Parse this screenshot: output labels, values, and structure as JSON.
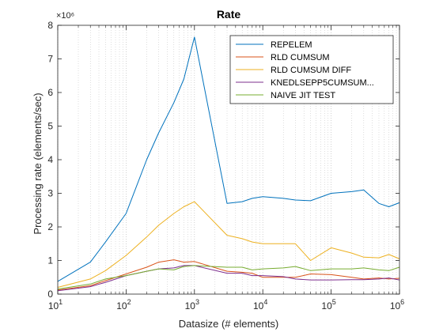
{
  "chart_data": {
    "type": "line",
    "title": "Rate",
    "xlabel": "Datasize (# elements)",
    "ylabel": "Processing rate (elements/sec)",
    "xscale": "log",
    "xlim": [
      10,
      1000000
    ],
    "ylim": [
      0,
      8
    ],
    "y_multiplier_label": "×10⁶",
    "y_multiplier": 1000000,
    "x_ticks": [
      {
        "value": 10,
        "base": "10",
        "exp": "1"
      },
      {
        "value": 100,
        "base": "10",
        "exp": "2"
      },
      {
        "value": 1000,
        "base": "10",
        "exp": "3"
      },
      {
        "value": 10000,
        "base": "10",
        "exp": "4"
      },
      {
        "value": 100000,
        "base": "10",
        "exp": "5"
      },
      {
        "value": 1000000,
        "base": "10",
        "exp": "6"
      }
    ],
    "y_ticks": [
      "0",
      "1",
      "2",
      "3",
      "4",
      "5",
      "6",
      "7",
      "8"
    ],
    "grid": "minor-x-dotted",
    "legend_position": "top-right",
    "series": [
      {
        "name": "REPELEM",
        "color": "#0072BD",
        "points": [
          [
            10,
            0.38
          ],
          [
            30,
            0.95
          ],
          [
            50,
            1.55
          ],
          [
            100,
            2.4
          ],
          [
            200,
            4.0
          ],
          [
            300,
            4.8
          ],
          [
            500,
            5.7
          ],
          [
            700,
            6.4
          ],
          [
            1000,
            7.65
          ],
          [
            3000,
            2.7
          ],
          [
            5000,
            2.75
          ],
          [
            7000,
            2.85
          ],
          [
            10000,
            2.9
          ],
          [
            20000,
            2.85
          ],
          [
            30000,
            2.8
          ],
          [
            50000,
            2.78
          ],
          [
            100000,
            3.0
          ],
          [
            200000,
            3.05
          ],
          [
            300000,
            3.1
          ],
          [
            500000,
            2.7
          ],
          [
            700000,
            2.6
          ],
          [
            1000000,
            2.72
          ]
        ]
      },
      {
        "name": "RLD CUMSUM",
        "color": "#D95319",
        "points": [
          [
            10,
            0.12
          ],
          [
            30,
            0.25
          ],
          [
            50,
            0.4
          ],
          [
            100,
            0.6
          ],
          [
            200,
            0.8
          ],
          [
            300,
            0.95
          ],
          [
            500,
            1.02
          ],
          [
            700,
            0.95
          ],
          [
            1000,
            0.97
          ],
          [
            3000,
            0.68
          ],
          [
            5000,
            0.65
          ],
          [
            7000,
            0.62
          ],
          [
            10000,
            0.5
          ],
          [
            20000,
            0.5
          ],
          [
            30000,
            0.5
          ],
          [
            50000,
            0.6
          ],
          [
            100000,
            0.58
          ],
          [
            200000,
            0.5
          ],
          [
            300000,
            0.45
          ],
          [
            500000,
            0.48
          ],
          [
            700000,
            0.45
          ],
          [
            1000000,
            0.47
          ]
        ]
      },
      {
        "name": "RLD CUMSUM DIFF",
        "color": "#EDB120",
        "points": [
          [
            10,
            0.2
          ],
          [
            30,
            0.45
          ],
          [
            50,
            0.7
          ],
          [
            100,
            1.15
          ],
          [
            200,
            1.7
          ],
          [
            300,
            2.05
          ],
          [
            500,
            2.4
          ],
          [
            700,
            2.6
          ],
          [
            1000,
            2.75
          ],
          [
            3000,
            1.75
          ],
          [
            5000,
            1.65
          ],
          [
            7000,
            1.55
          ],
          [
            10000,
            1.5
          ],
          [
            20000,
            1.5
          ],
          [
            30000,
            1.5
          ],
          [
            50000,
            1.0
          ],
          [
            100000,
            1.38
          ],
          [
            200000,
            1.22
          ],
          [
            300000,
            1.1
          ],
          [
            500000,
            1.08
          ],
          [
            700000,
            1.18
          ],
          [
            1000000,
            1.05
          ]
        ]
      },
      {
        "name": "KNEDLSEPP5CUMSUM...",
        "color": "#7E2F8E",
        "points": [
          [
            10,
            0.1
          ],
          [
            30,
            0.22
          ],
          [
            50,
            0.35
          ],
          [
            100,
            0.55
          ],
          [
            200,
            0.68
          ],
          [
            300,
            0.75
          ],
          [
            500,
            0.78
          ],
          [
            700,
            0.85
          ],
          [
            1000,
            0.85
          ],
          [
            3000,
            0.62
          ],
          [
            5000,
            0.62
          ],
          [
            7000,
            0.55
          ],
          [
            10000,
            0.55
          ],
          [
            20000,
            0.52
          ],
          [
            30000,
            0.45
          ],
          [
            50000,
            0.42
          ],
          [
            100000,
            0.42
          ],
          [
            200000,
            0.43
          ],
          [
            300000,
            0.43
          ],
          [
            500000,
            0.45
          ],
          [
            700000,
            0.48
          ],
          [
            1000000,
            0.42
          ]
        ]
      },
      {
        "name": "NAIVE JIT TEST",
        "color": "#77AC30",
        "points": [
          [
            10,
            0.15
          ],
          [
            30,
            0.3
          ],
          [
            50,
            0.45
          ],
          [
            100,
            0.55
          ],
          [
            200,
            0.68
          ],
          [
            300,
            0.75
          ],
          [
            500,
            0.72
          ],
          [
            700,
            0.82
          ],
          [
            1000,
            0.85
          ],
          [
            3000,
            0.8
          ],
          [
            5000,
            0.8
          ],
          [
            7000,
            0.72
          ],
          [
            10000,
            0.75
          ],
          [
            20000,
            0.78
          ],
          [
            30000,
            0.82
          ],
          [
            50000,
            0.7
          ],
          [
            100000,
            0.75
          ],
          [
            200000,
            0.75
          ],
          [
            300000,
            0.78
          ],
          [
            500000,
            0.72
          ],
          [
            700000,
            0.7
          ],
          [
            1000000,
            0.8
          ]
        ]
      }
    ]
  }
}
